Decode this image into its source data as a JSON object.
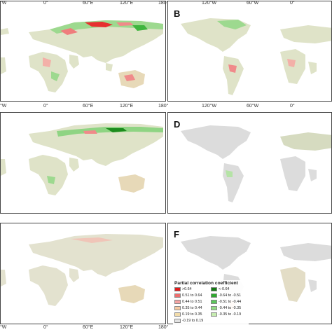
{
  "panels": [
    {
      "id": "A",
      "label": ""
    },
    {
      "id": "B",
      "label": "B"
    },
    {
      "id": "C",
      "label": ""
    },
    {
      "id": "D",
      "label": "D"
    },
    {
      "id": "E",
      "label": ""
    },
    {
      "id": "F",
      "label": "F"
    }
  ],
  "ticks": {
    "left_axis": [
      "°W",
      "0°",
      "60°E",
      "120°E",
      "180°"
    ],
    "right_axis": [
      "120°W",
      "60°W",
      "0°"
    ]
  },
  "legend": {
    "title": "Partial correlation coefficient",
    "positive": [
      {
        "label": ">0.64",
        "color": "#e01b1b"
      },
      {
        "label": "0.51 to 0.64",
        "color": "#ee6f6f"
      },
      {
        "label": "0.44 to 0.51",
        "color": "#f4a3a3"
      },
      {
        "label": "0.35 to 0.44",
        "color": "#f5c9a2"
      },
      {
        "label": "0.19 to 0.35",
        "color": "#f2dcaa"
      },
      {
        "label": "-0.19 to 0.19",
        "color": "#e2e2e2"
      }
    ],
    "negative": [
      {
        "label": "<-0.64",
        "color": "#137a13"
      },
      {
        "label": "-0.64 to -0.51",
        "color": "#2fa82f"
      },
      {
        "label": "-0.51 to -0.44",
        "color": "#5cc85c"
      },
      {
        "label": "-0.44 to -0.35",
        "color": "#92dc84"
      },
      {
        "label": "-0.35 to -0.19",
        "color": "#c6ecb0"
      }
    ]
  },
  "colors": {
    "land_mix": "#d9dfc4",
    "land_gray": "#dcdcdc",
    "border": "#444444"
  }
}
